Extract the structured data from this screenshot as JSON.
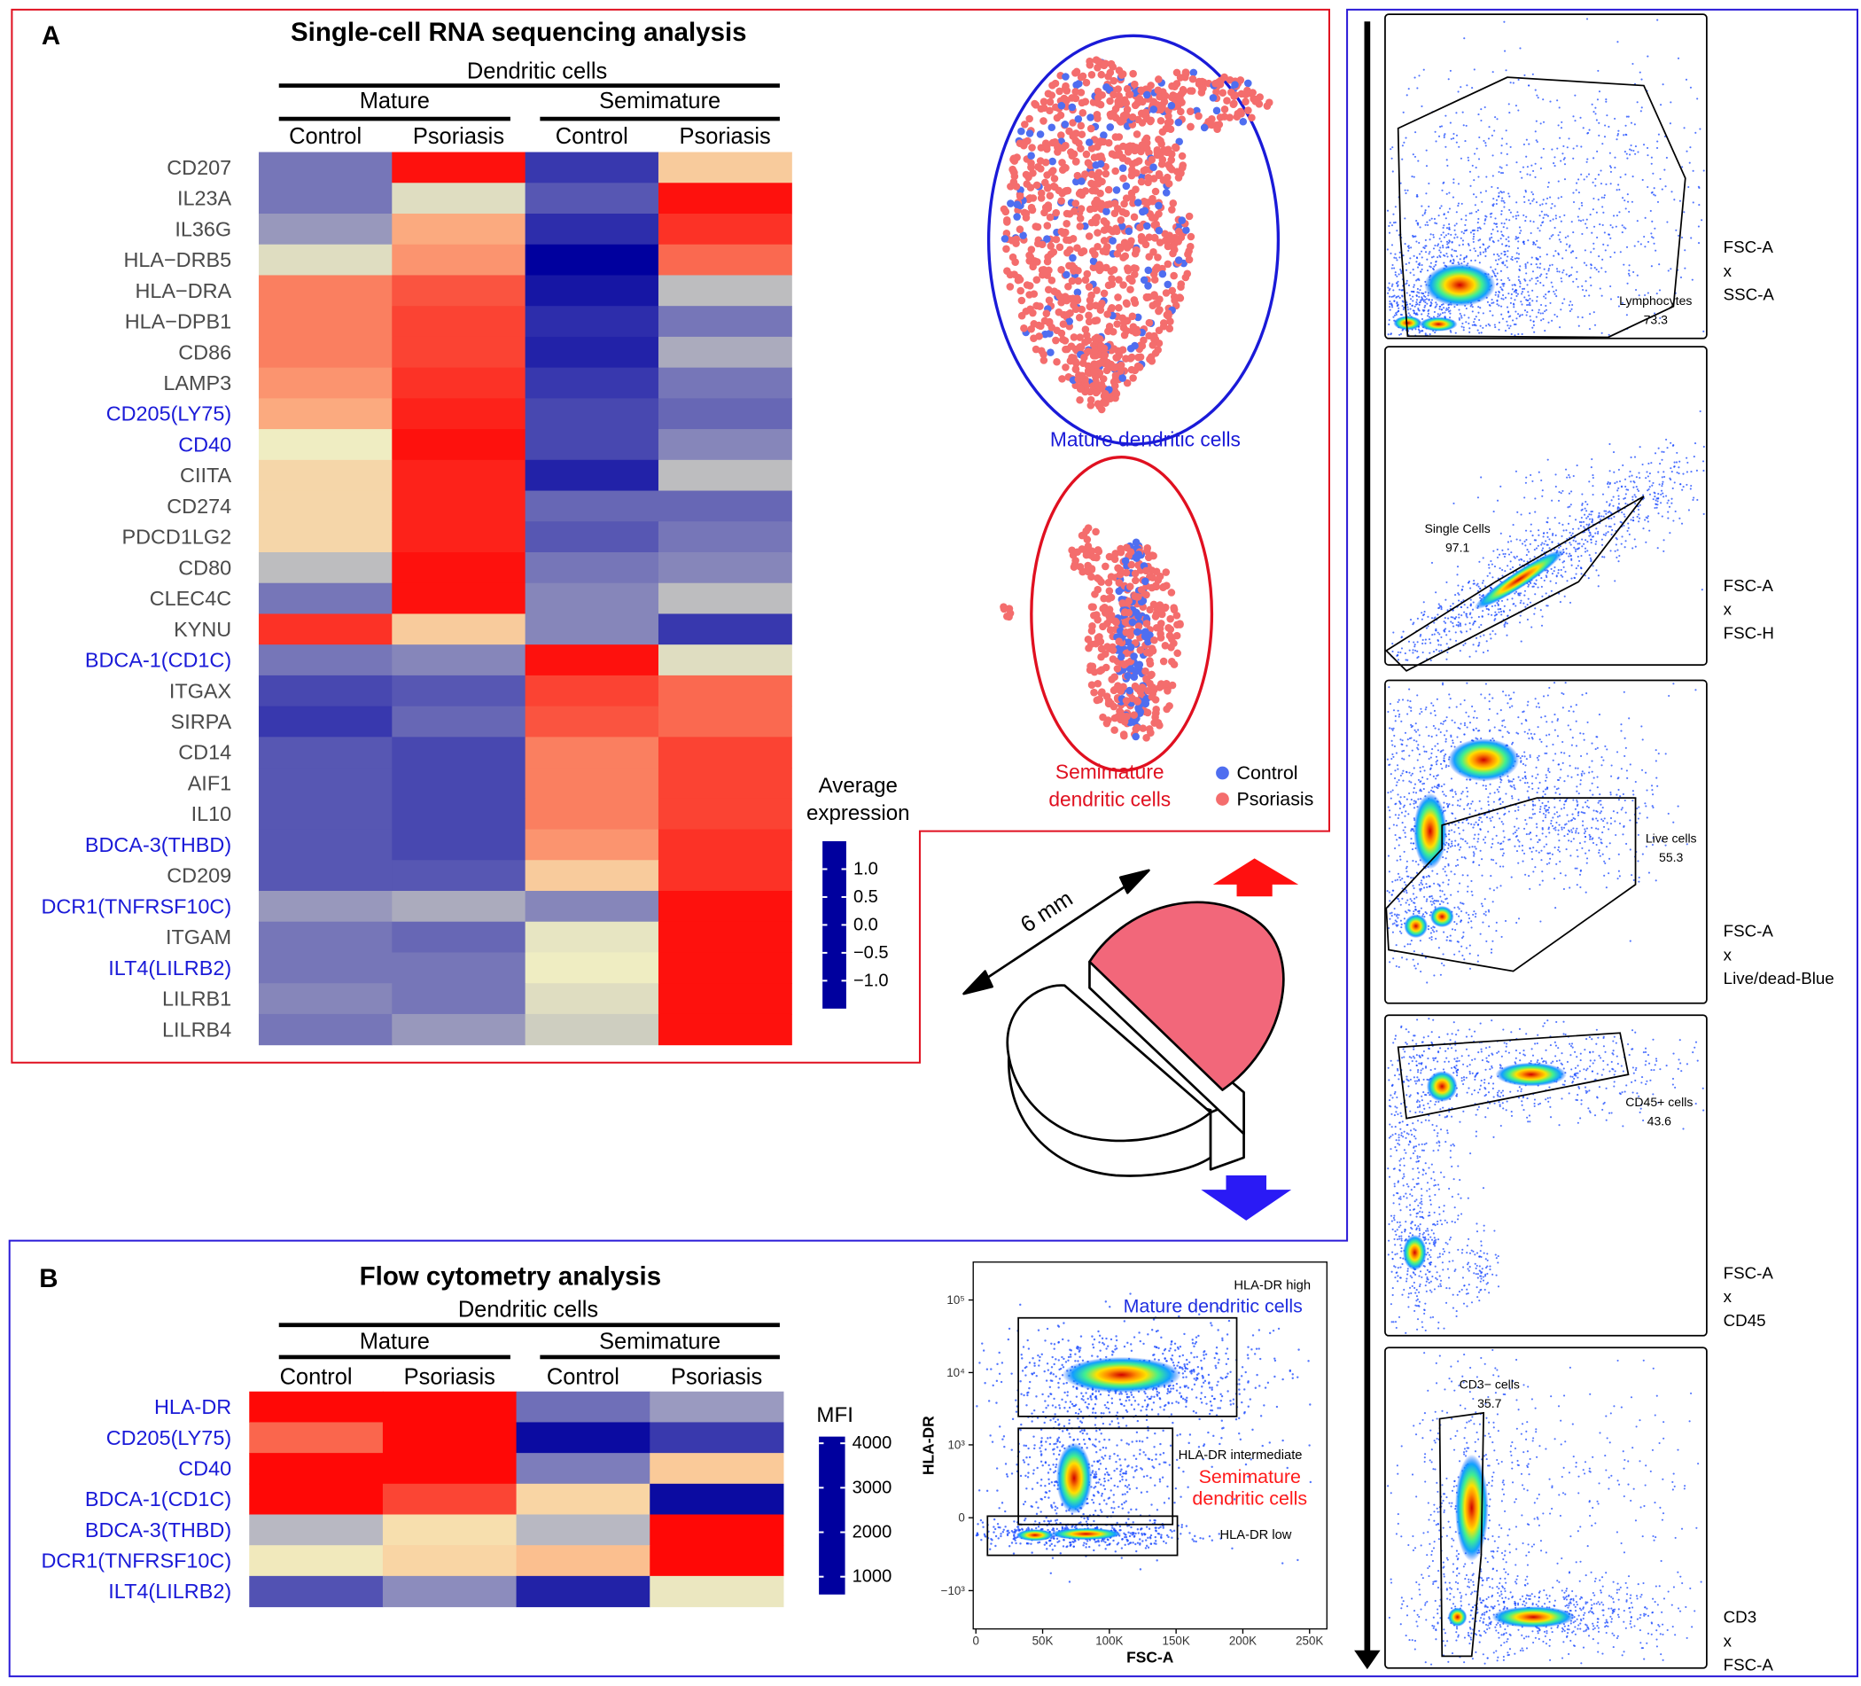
{
  "panel_a": {
    "label": "A",
    "title": "Single-cell RNA sequencing analysis",
    "heatmap": {
      "group": "Dendritic cells",
      "subgroups": [
        "Mature",
        "Semimature"
      ],
      "columns": [
        "Control",
        "Psoriasis",
        "Control",
        "Psoriasis"
      ],
      "rows": [
        {
          "label": "CD207",
          "color": "#4a4a4a",
          "values": [
            -0.6,
            1.4,
            -1.0,
            0.4
          ]
        },
        {
          "label": "IL23A",
          "color": "#4a4a4a",
          "values": [
            -0.6,
            0.0,
            -0.8,
            1.4
          ]
        },
        {
          "label": "IL36G",
          "color": "#4a4a4a",
          "values": [
            -0.4,
            0.6,
            -1.1,
            1.2
          ]
        },
        {
          "label": "HLA−DRB5",
          "color": "#4a4a4a",
          "values": [
            0.0,
            0.7,
            -1.5,
            0.9
          ]
        },
        {
          "label": "HLA−DRA",
          "color": "#4a4a4a",
          "values": [
            0.8,
            1.0,
            -1.3,
            -0.2
          ]
        },
        {
          "label": "HLA−DPB1",
          "color": "#4a4a4a",
          "values": [
            0.8,
            1.1,
            -1.1,
            -0.6
          ]
        },
        {
          "label": "CD86",
          "color": "#4a4a4a",
          "values": [
            0.8,
            1.1,
            -1.2,
            -0.3
          ]
        },
        {
          "label": "LAMP3",
          "color": "#4a4a4a",
          "values": [
            0.7,
            1.2,
            -1.0,
            -0.6
          ]
        },
        {
          "label": "CD205(LY75)",
          "color": "#1a1ad8",
          "values": [
            0.6,
            1.3,
            -0.9,
            -0.7
          ]
        },
        {
          "label": "CD40",
          "color": "#1a1ad8",
          "values": [
            0.1,
            1.4,
            -0.9,
            -0.5
          ]
        },
        {
          "label": "CIITA",
          "color": "#4a4a4a",
          "values": [
            0.3,
            1.3,
            -1.2,
            -0.2
          ]
        },
        {
          "label": "CD274",
          "color": "#4a4a4a",
          "values": [
            0.3,
            1.3,
            -0.7,
            -0.7
          ]
        },
        {
          "label": "PDCD1LG2",
          "color": "#4a4a4a",
          "values": [
            0.3,
            1.3,
            -0.8,
            -0.6
          ]
        },
        {
          "label": "CD80",
          "color": "#4a4a4a",
          "values": [
            -0.2,
            1.4,
            -0.6,
            -0.5
          ]
        },
        {
          "label": "CLEC4C",
          "color": "#4a4a4a",
          "values": [
            -0.6,
            1.4,
            -0.5,
            -0.2
          ]
        },
        {
          "label": "KYNU",
          "color": "#4a4a4a",
          "values": [
            1.2,
            0.4,
            -0.5,
            -1.0
          ]
        },
        {
          "label": "BDCA-1(CD1C)",
          "color": "#1a1ad8",
          "values": [
            -0.6,
            -0.5,
            1.4,
            0.0
          ]
        },
        {
          "label": "ITGAX",
          "color": "#4a4a4a",
          "values": [
            -0.9,
            -0.8,
            1.1,
            0.9
          ]
        },
        {
          "label": "SIRPA",
          "color": "#4a4a4a",
          "values": [
            -1.0,
            -0.7,
            1.0,
            0.9
          ]
        },
        {
          "label": "CD14",
          "color": "#4a4a4a",
          "values": [
            -0.8,
            -0.9,
            0.8,
            1.1
          ]
        },
        {
          "label": "AIF1",
          "color": "#4a4a4a",
          "values": [
            -0.8,
            -0.9,
            0.8,
            1.1
          ]
        },
        {
          "label": "IL10",
          "color": "#4a4a4a",
          "values": [
            -0.8,
            -0.9,
            0.8,
            1.1
          ]
        },
        {
          "label": "BDCA-3(THBD)",
          "color": "#1a1ad8",
          "values": [
            -0.8,
            -0.9,
            0.7,
            1.2
          ]
        },
        {
          "label": "CD209",
          "color": "#4a4a4a",
          "values": [
            -0.8,
            -0.8,
            0.4,
            1.2
          ]
        },
        {
          "label": "DCR1(TNFRSF10C)",
          "color": "#1a1ad8",
          "values": [
            -0.4,
            -0.3,
            -0.5,
            1.4
          ]
        },
        {
          "label": "ITGAM",
          "color": "#4a4a4a",
          "values": [
            -0.6,
            -0.7,
            0.05,
            1.4
          ]
        },
        {
          "label": "ILT4(LILRB2)",
          "color": "#1a1ad8",
          "values": [
            -0.6,
            -0.6,
            0.1,
            1.4
          ]
        },
        {
          "label": "LILRB1",
          "color": "#4a4a4a",
          "values": [
            -0.5,
            -0.6,
            0.0,
            1.4
          ]
        },
        {
          "label": "LILRB4",
          "color": "#4a4a4a",
          "values": [
            -0.6,
            -0.4,
            -0.1,
            1.4
          ]
        }
      ],
      "colorbar": {
        "title": [
          "Average",
          "expression"
        ],
        "lim": [
          -1.5,
          1.5
        ],
        "ticks": [
          {
            "value": 1,
            "label": "1.0"
          },
          0.5,
          {
            "value": 0,
            "label": "0.0"
          },
          {
            "value": -0.5,
            "label": "−0.5"
          },
          {
            "value": -1,
            "label": "−1.0"
          }
        ],
        "colorscale": [
          [
            -1.5,
            "#00009e"
          ],
          [
            -1,
            "#3838ae"
          ],
          [
            -0.5,
            "#8686ba"
          ],
          [
            -0.15,
            "#c6c6c0"
          ],
          [
            0.1,
            "#efedc2"
          ],
          [
            0.5,
            "#fbbf8f"
          ],
          [
            1,
            "#fa5440"
          ],
          [
            1.5,
            "#ff0000"
          ]
        ]
      }
    },
    "umap": {
      "mature_label": "Mature dendritic cells",
      "semimature_label": [
        "Semimature",
        "dendritic cells"
      ],
      "legend": [
        {
          "name": "Control",
          "color": "#4f6ef0"
        },
        {
          "name": "Psoriasis",
          "color": "#f46d6d"
        }
      ]
    }
  },
  "biopsy": {
    "size_label": "6 mm"
  },
  "panel_b": {
    "label": "B",
    "title": "Flow cytometry analysis",
    "heatmap": {
      "group": "Dendritic cells",
      "subgroups": [
        "Mature",
        "Semimature"
      ],
      "columns": [
        "Control",
        "Psoriasis",
        "Control",
        "Psoriasis"
      ],
      "rows": [
        {
          "label": "HLA-DR",
          "color": "#1a1ad8",
          "values": [
            4100,
            4100,
            1500,
            1800
          ]
        },
        {
          "label": "CD205(LY75)",
          "color": "#1a1ad8",
          "values": [
            3500,
            4100,
            700,
            1100
          ]
        },
        {
          "label": "CD40",
          "color": "#1a1ad8",
          "values": [
            4100,
            4100,
            1600,
            2900
          ]
        },
        {
          "label": "BDCA-1(CD1C)",
          "color": "#1a1ad8",
          "values": [
            4100,
            3700,
            2800,
            700
          ]
        },
        {
          "label": "BDCA-3(THBD)",
          "color": "#1a1ad8",
          "values": [
            2000,
            2700,
            2000,
            4100
          ]
        },
        {
          "label": "DCR1(TNFRSF10C)",
          "color": "#1a1ad8",
          "values": [
            2500,
            2800,
            3000,
            4100
          ]
        },
        {
          "label": "ILT4(LILRB2)",
          "color": "#1a1ad8",
          "values": [
            1300,
            1700,
            900,
            2400
          ]
        }
      ],
      "colorbar": {
        "title": "MFI",
        "lim": [
          600,
          4150
        ],
        "ticks": [
          4000,
          3000,
          2000,
          1000
        ],
        "colorscale": [
          [
            600,
            "#00009e"
          ],
          [
            1200,
            "#4444b0"
          ],
          [
            1800,
            "#9a9ac0"
          ],
          [
            2300,
            "#e6e6c4"
          ],
          [
            2600,
            "#f6eab8"
          ],
          [
            3000,
            "#fbbf8f"
          ],
          [
            3600,
            "#fa5440"
          ],
          [
            4150,
            "#ff0000"
          ]
        ]
      }
    },
    "flow_plot": {
      "xlabel": "FSC-A",
      "ylabel": "HLA-DR",
      "xlim": [
        -2000,
        263000
      ],
      "xticks": [
        0,
        {
          "value": 50000,
          "label": "50K"
        },
        {
          "value": 100000,
          "label": "100K"
        },
        {
          "value": 150000,
          "label": "150K"
        },
        {
          "value": 200000,
          "label": "200K"
        },
        {
          "value": 250000,
          "label": "250K"
        }
      ],
      "ylim": [
        -3400,
        333000
      ],
      "yticks": [
        {
          "value": 100000,
          "label": "10⁵"
        },
        {
          "value": 10000,
          "label": "10⁴"
        },
        {
          "value": 1000,
          "label": "10³"
        },
        0,
        {
          "value": -1000,
          "label": "−10³"
        }
      ],
      "gates": [
        {
          "label": "HLA-DR high",
          "population": [
            "Mature dendritic cells"
          ],
          "color": "#1f2ee0"
        },
        {
          "label": "HLA-DR intermediate",
          "population": [
            "Semimature",
            "dendritic cells"
          ],
          "color": "#ff1a1a"
        },
        {
          "label": "HLA-DR low"
        }
      ]
    }
  },
  "gating": [
    {
      "gate": "Lymphocytes",
      "percent": 73.3,
      "axes": [
        "FSC-A",
        "x",
        "SSC-A"
      ]
    },
    {
      "gate": "Single Cells",
      "percent": 97.1,
      "axes": [
        "FSC-A",
        "x",
        "FSC-H"
      ]
    },
    {
      "gate": "Live cells",
      "percent": 55.3,
      "axes": [
        "FSC-A",
        "x",
        "Live/dead-Blue"
      ]
    },
    {
      "gate": "CD45+ cells",
      "percent": 43.6,
      "axes": [
        "FSC-A",
        "x",
        "CD45"
      ]
    },
    {
      "gate": "CD3− cells",
      "percent": 35.7,
      "axes": [
        "CD3",
        "x",
        "FSC-A"
      ]
    }
  ]
}
